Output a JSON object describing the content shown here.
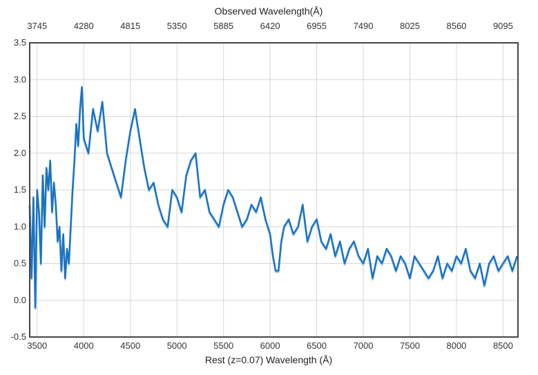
{
  "chart_data": {
    "type": "line",
    "title": "",
    "top_axis_title": "Observed Wavelength(Å)",
    "xlabel": "Rest (z=0.07) Wavelength (Å)",
    "ylabel": "",
    "redshift": 0.07,
    "xlim": [
      3420,
      8660
    ],
    "ylim": [
      -0.5,
      3.5
    ],
    "x_ticks": [
      3500,
      4000,
      4500,
      5000,
      5500,
      6000,
      6500,
      7000,
      7500,
      8000,
      8500
    ],
    "x_tick_labels": [
      "3500",
      "4000",
      "4500",
      "5000",
      "5500",
      "6000",
      "6500",
      "7000",
      "7500",
      "8000",
      "8500"
    ],
    "top_ticks": [
      3745,
      4280,
      4815,
      5350,
      5885,
      6420,
      6955,
      7490,
      8025,
      8560,
      9095
    ],
    "top_tick_labels": [
      "3745",
      "4280",
      "4815",
      "5350",
      "5885",
      "6420",
      "6955",
      "7490",
      "8025",
      "8560",
      "9095"
    ],
    "y_ticks": [
      -0.5,
      0.0,
      0.5,
      1.0,
      1.5,
      2.0,
      2.5,
      3.0,
      3.5
    ],
    "y_tick_labels": [
      "-0.5",
      "0.0",
      "0.5",
      "1.0",
      "1.5",
      "2.0",
      "2.5",
      "3.0",
      "3.5"
    ],
    "grid": true,
    "colors": {
      "line": "#1a73c2",
      "shadow": "#b8d4ea",
      "grid": "#d6d6d6",
      "frame": "#444444"
    },
    "series": [
      {
        "x": [
          3420,
          3440,
          3460,
          3480,
          3500,
          3520,
          3540,
          3560,
          3580,
          3600,
          3620,
          3640,
          3660,
          3680,
          3700,
          3720,
          3740,
          3760,
          3780,
          3800,
          3820,
          3840,
          3860,
          3880,
          3900,
          3920,
          3940,
          3960,
          3980,
          4000,
          4050,
          4100,
          4150,
          4200,
          4250,
          4300,
          4350,
          4400,
          4450,
          4500,
          4550,
          4600,
          4650,
          4700,
          4750,
          4800,
          4850,
          4900,
          4950,
          5000,
          5050,
          5100,
          5150,
          5200,
          5250,
          5300,
          5350,
          5400,
          5450,
          5500,
          5550,
          5600,
          5650,
          5700,
          5750,
          5800,
          5850,
          5900,
          5950,
          6000,
          6030,
          6060,
          6090,
          6120,
          6150,
          6200,
          6250,
          6300,
          6350,
          6400,
          6450,
          6500,
          6550,
          6600,
          6650,
          6700,
          6750,
          6800,
          6850,
          6900,
          6950,
          7000,
          7050,
          7100,
          7150,
          7200,
          7250,
          7300,
          7350,
          7400,
          7450,
          7500,
          7550,
          7600,
          7650,
          7700,
          7750,
          7800,
          7850,
          7900,
          7950,
          8000,
          8050,
          8100,
          8150,
          8200,
          8250,
          8300,
          8350,
          8400,
          8450,
          8500,
          8550,
          8600,
          8650
        ],
        "y": [
          1.3,
          0.3,
          1.4,
          -0.1,
          1.5,
          1.2,
          0.5,
          1.7,
          1.0,
          1.8,
          1.5,
          1.9,
          1.2,
          1.6,
          1.3,
          0.8,
          1.0,
          0.4,
          0.9,
          0.3,
          0.7,
          0.5,
          1.0,
          1.5,
          1.9,
          2.4,
          2.1,
          2.6,
          2.9,
          2.2,
          2.0,
          2.6,
          2.3,
          2.7,
          2.0,
          1.8,
          1.6,
          1.4,
          1.9,
          2.3,
          2.6,
          2.2,
          1.8,
          1.5,
          1.6,
          1.3,
          1.1,
          1.0,
          1.5,
          1.4,
          1.2,
          1.7,
          1.9,
          2.0,
          1.4,
          1.5,
          1.2,
          1.1,
          1.0,
          1.3,
          1.5,
          1.4,
          1.2,
          1.0,
          1.1,
          1.3,
          1.2,
          1.4,
          1.1,
          0.9,
          0.6,
          0.4,
          0.4,
          0.8,
          1.0,
          1.1,
          0.9,
          1.0,
          1.3,
          0.8,
          1.0,
          1.1,
          0.8,
          0.7,
          0.9,
          0.6,
          0.8,
          0.5,
          0.7,
          0.8,
          0.6,
          0.5,
          0.7,
          0.3,
          0.6,
          0.5,
          0.7,
          0.6,
          0.4,
          0.6,
          0.5,
          0.3,
          0.6,
          0.5,
          0.4,
          0.3,
          0.4,
          0.6,
          0.3,
          0.5,
          0.4,
          0.6,
          0.5,
          0.7,
          0.4,
          0.3,
          0.5,
          0.2,
          0.5,
          0.6,
          0.4,
          0.5,
          0.6,
          0.4,
          0.6
        ]
      }
    ]
  }
}
